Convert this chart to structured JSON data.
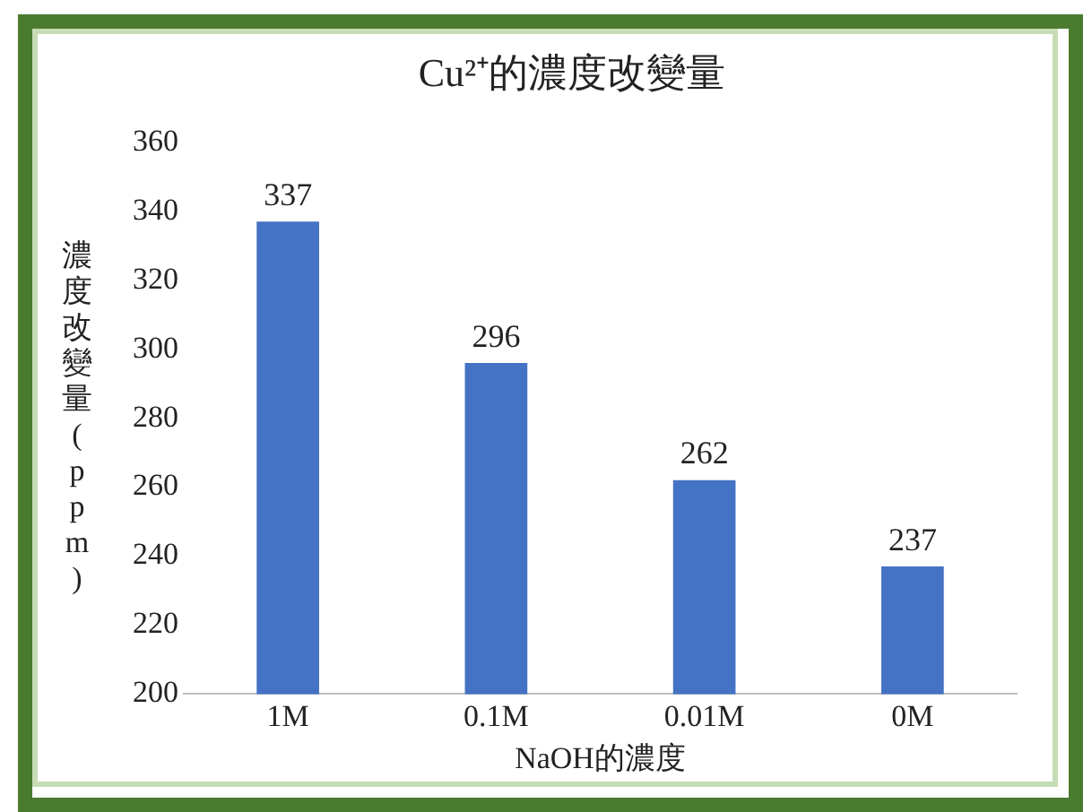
{
  "chart_data": {
    "type": "bar",
    "title": "Cu²⁺的濃度改變量",
    "xlabel": "NaOH的濃度",
    "ylabel": "濃度改變量(ppm)",
    "categories": [
      "1M",
      "0.1M",
      "0.01M",
      "0M"
    ],
    "values": [
      337,
      296,
      262,
      237
    ],
    "color": "#4472c4",
    "ylim": [
      200,
      360
    ],
    "yticks": [
      200,
      220,
      240,
      260,
      280,
      300,
      320,
      340,
      360
    ],
    "grid": false,
    "legend": false,
    "data_labels": true
  }
}
